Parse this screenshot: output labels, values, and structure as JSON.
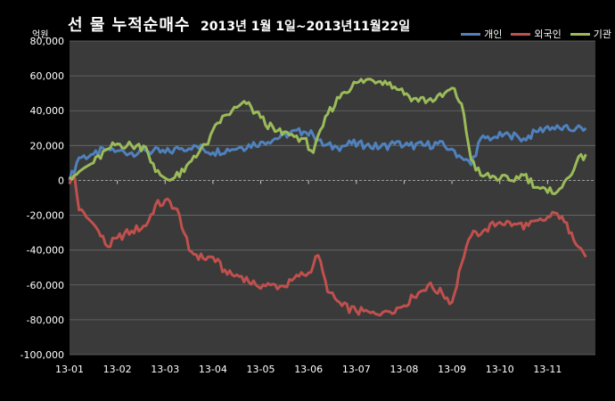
{
  "chart_data": {
    "type": "line",
    "title": "선 물 누적순매수",
    "subtitle": "2013년 1월 1일~2013년11월22일",
    "ylabel": "억원",
    "xlabel": "",
    "ylim": [
      -100000,
      80000
    ],
    "yticks": [
      80000,
      60000,
      40000,
      20000,
      0,
      -20000,
      -40000,
      -60000,
      -80000,
      -100000
    ],
    "ytick_labels": [
      "80,000",
      "60,000",
      "40,000",
      "20,000",
      "0",
      "-20,000",
      "-40,000",
      "-60,000",
      "-80,000",
      "-100,000"
    ],
    "xtick_labels": [
      "13-01",
      "13-02",
      "13-03",
      "13-04",
      "13-05",
      "13-06",
      "13-07",
      "13-08",
      "13-09",
      "13-10",
      "13-11"
    ],
    "grid": "horizontal",
    "legend_position": "top-right",
    "background": "#3a3a3a",
    "series": [
      {
        "name": "개인",
        "color": "#4f81bd",
        "points": [
          [
            0.0,
            0
          ],
          [
            0.2,
            13000
          ],
          [
            0.5,
            15000
          ],
          [
            0.8,
            18000
          ],
          [
            1.0,
            17000
          ],
          [
            1.3,
            16000
          ],
          [
            1.6,
            17000
          ],
          [
            2.0,
            16000
          ],
          [
            2.3,
            18000
          ],
          [
            2.6,
            20000
          ],
          [
            3.0,
            16000
          ],
          [
            3.3,
            18000
          ],
          [
            3.6,
            19000
          ],
          [
            4.0,
            22000
          ],
          [
            4.3,
            24000
          ],
          [
            4.6,
            27000
          ],
          [
            4.9,
            28000
          ],
          [
            5.1,
            26000
          ],
          [
            5.3,
            20000
          ],
          [
            5.6,
            19000
          ],
          [
            5.9,
            21000
          ],
          [
            6.2,
            20000
          ],
          [
            6.5,
            19000
          ],
          [
            6.8,
            21000
          ],
          [
            7.1,
            20000
          ],
          [
            7.4,
            20000
          ],
          [
            7.7,
            21000
          ],
          [
            8.0,
            18000
          ],
          [
            8.2,
            13000
          ],
          [
            8.4,
            9000
          ],
          [
            8.6,
            24000
          ],
          [
            8.9,
            25000
          ],
          [
            9.2,
            26000
          ],
          [
            9.5,
            24000
          ],
          [
            9.8,
            28000
          ],
          [
            10.0,
            31000
          ],
          [
            10.3,
            29000
          ],
          [
            10.6,
            30000
          ],
          [
            10.8,
            30000
          ]
        ]
      },
      {
        "name": "외국인",
        "color": "#c0504d",
        "points": [
          [
            0.0,
            -2000
          ],
          [
            0.1,
            3000
          ],
          [
            0.2,
            -17000
          ],
          [
            0.5,
            -25000
          ],
          [
            0.8,
            -38000
          ],
          [
            1.0,
            -33000
          ],
          [
            1.3,
            -29000
          ],
          [
            1.6,
            -26000
          ],
          [
            1.8,
            -14000
          ],
          [
            2.1,
            -12000
          ],
          [
            2.3,
            -20000
          ],
          [
            2.5,
            -40000
          ],
          [
            2.8,
            -45000
          ],
          [
            3.0,
            -44000
          ],
          [
            3.3,
            -54000
          ],
          [
            3.6,
            -55000
          ],
          [
            3.9,
            -60000
          ],
          [
            4.2,
            -60000
          ],
          [
            4.5,
            -61000
          ],
          [
            4.8,
            -55000
          ],
          [
            5.0,
            -53000
          ],
          [
            5.2,
            -43000
          ],
          [
            5.4,
            -64000
          ],
          [
            5.7,
            -72000
          ],
          [
            6.0,
            -75000
          ],
          [
            6.3,
            -76000
          ],
          [
            6.6,
            -75000
          ],
          [
            6.9,
            -73000
          ],
          [
            7.2,
            -67000
          ],
          [
            7.5,
            -60000
          ],
          [
            7.8,
            -65000
          ],
          [
            8.0,
            -70000
          ],
          [
            8.2,
            -48000
          ],
          [
            8.4,
            -32000
          ],
          [
            8.7,
            -28000
          ],
          [
            9.0,
            -24000
          ],
          [
            9.3,
            -25000
          ],
          [
            9.6,
            -26000
          ],
          [
            9.9,
            -23000
          ],
          [
            10.2,
            -19000
          ],
          [
            10.5,
            -30000
          ],
          [
            10.8,
            -44000
          ]
        ]
      },
      {
        "name": "기관",
        "color": "#9bbb59",
        "points": [
          [
            0.0,
            2000
          ],
          [
            0.2,
            5000
          ],
          [
            0.5,
            10000
          ],
          [
            0.8,
            18000
          ],
          [
            1.0,
            21000
          ],
          [
            1.3,
            20000
          ],
          [
            1.6,
            19000
          ],
          [
            1.8,
            5000
          ],
          [
            2.1,
            0
          ],
          [
            2.4,
            5000
          ],
          [
            2.6,
            14000
          ],
          [
            2.9,
            21000
          ],
          [
            3.1,
            33000
          ],
          [
            3.4,
            40000
          ],
          [
            3.7,
            44000
          ],
          [
            4.0,
            36000
          ],
          [
            4.3,
            28000
          ],
          [
            4.6,
            26000
          ],
          [
            4.9,
            24000
          ],
          [
            5.1,
            16000
          ],
          [
            5.4,
            38000
          ],
          [
            5.7,
            50000
          ],
          [
            6.0,
            56000
          ],
          [
            6.3,
            58000
          ],
          [
            6.6,
            57000
          ],
          [
            6.9,
            52000
          ],
          [
            7.2,
            47000
          ],
          [
            7.5,
            46000
          ],
          [
            7.8,
            48000
          ],
          [
            8.0,
            53000
          ],
          [
            8.2,
            44000
          ],
          [
            8.4,
            12000
          ],
          [
            8.6,
            3000
          ],
          [
            8.9,
            2000
          ],
          [
            9.2,
            0
          ],
          [
            9.5,
            3000
          ],
          [
            9.8,
            -4000
          ],
          [
            10.0,
            -7000
          ],
          [
            10.3,
            -4000
          ],
          [
            10.6,
            10000
          ],
          [
            10.8,
            15000
          ]
        ]
      }
    ]
  }
}
